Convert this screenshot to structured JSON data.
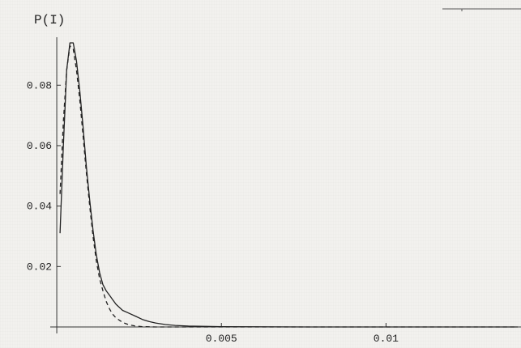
{
  "chart_data": {
    "type": "line",
    "ylabel": "P(I)",
    "xlabel": "",
    "xlim": [
      -0.0001,
      0.0141
    ],
    "ylim": [
      0,
      0.094
    ],
    "x_ticks": [
      {
        "value": 0.005,
        "label": "0.005"
      },
      {
        "value": 0.01,
        "label": "0.01"
      }
    ],
    "y_ticks": [
      {
        "value": 0.02,
        "label": "0.02"
      },
      {
        "value": 0.04,
        "label": "0.04"
      },
      {
        "value": 0.06,
        "label": "0.06"
      },
      {
        "value": 0.08,
        "label": "0.08"
      }
    ],
    "series": [
      {
        "style": "solid",
        "x": [
          0.0001,
          0.0002,
          0.0003,
          0.0004,
          0.0005,
          0.0006,
          0.0007,
          0.0008,
          0.0009,
          0.001,
          0.0011,
          0.0012,
          0.0013,
          0.0014,
          0.0015,
          0.0016,
          0.0017,
          0.0018,
          0.002,
          0.0022,
          0.0024,
          0.0026,
          0.0028,
          0.003,
          0.0033,
          0.0036,
          0.004,
          0.0045,
          0.005,
          0.006,
          0.008,
          0.01,
          0.012,
          0.014
        ],
        "y": [
          0.031,
          0.06,
          0.085,
          0.094,
          0.094,
          0.088,
          0.078,
          0.066,
          0.053,
          0.042,
          0.032,
          0.024,
          0.018,
          0.014,
          0.012,
          0.0105,
          0.009,
          0.0075,
          0.0055,
          0.0045,
          0.0035,
          0.0025,
          0.0018,
          0.0013,
          0.0008,
          0.0005,
          0.0003,
          0.0002,
          0.0001,
          5e-05,
          0.0,
          0.0,
          0.0,
          0.0
        ]
      },
      {
        "style": "dashed",
        "x": [
          0.0001,
          0.0002,
          0.0003,
          0.0004,
          0.0005,
          0.0006,
          0.0007,
          0.0008,
          0.0009,
          0.001,
          0.0011,
          0.0012,
          0.0013,
          0.0014,
          0.0015,
          0.0016,
          0.0017,
          0.0018,
          0.002,
          0.0022,
          0.0024,
          0.0026,
          0.0028,
          0.003,
          0.0035,
          0.004,
          0.005,
          0.007,
          0.01,
          0.014
        ],
        "y": [
          0.044,
          0.068,
          0.085,
          0.093,
          0.092,
          0.085,
          0.075,
          0.063,
          0.051,
          0.04,
          0.03,
          0.022,
          0.016,
          0.012,
          0.0085,
          0.006,
          0.0042,
          0.003,
          0.0015,
          0.0007,
          0.0003,
          0.0001,
          5e-05,
          0.0,
          0.0,
          0.0,
          0.0,
          0.0,
          0.0,
          0.0
        ]
      }
    ]
  }
}
